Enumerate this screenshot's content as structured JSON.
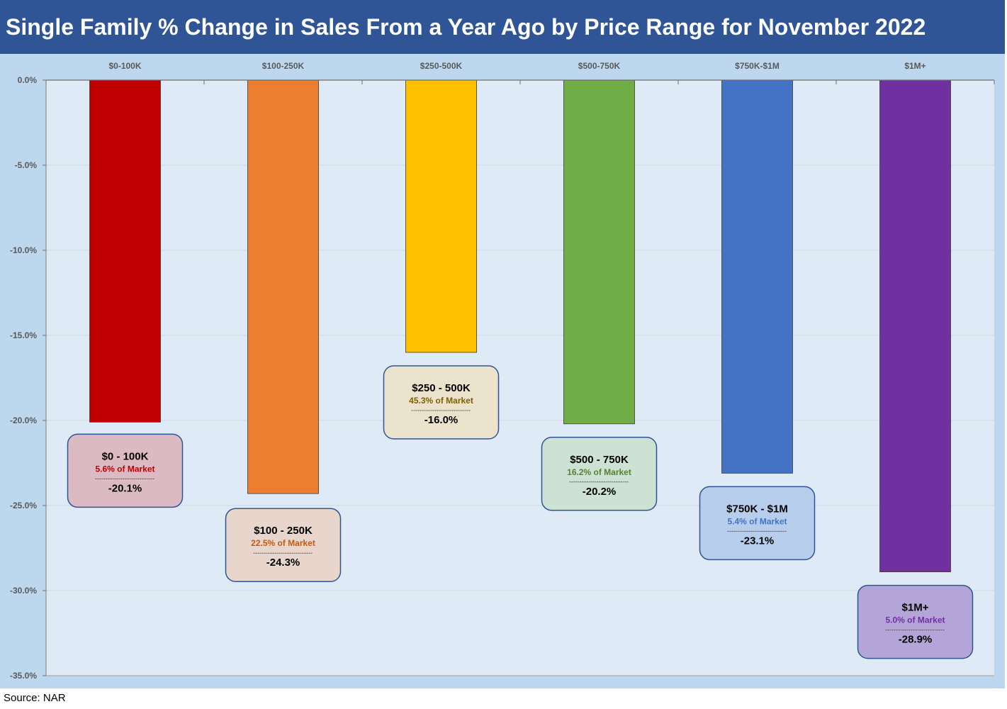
{
  "title": "Single Family % Change in Sales From a Year Ago by Price Range for November 2022",
  "source": "Source: NAR",
  "chart_data": {
    "type": "bar",
    "title": "Single Family % Change in Sales From a Year Ago by Price Range for November 2022",
    "categories": [
      "$0-100K",
      "$100-250K",
      "$250-500K",
      "$500-750K",
      "$750K-$1M",
      "$1M+"
    ],
    "values": [
      -20.1,
      -24.3,
      -16.0,
      -20.2,
      -23.1,
      -28.9
    ],
    "ylim": [
      -35,
      0
    ],
    "yticks": [
      0,
      -5,
      -10,
      -15,
      -20,
      -25,
      -30,
      -35
    ],
    "ytick_labels": [
      "0.0%",
      "-5.0%",
      "-10.0%",
      "-15.0%",
      "-20.0%",
      "-25.0%",
      "-30.0%",
      "-35.0%"
    ],
    "xaxis_position": "top",
    "grid": true,
    "colors": [
      "#c00000",
      "#ed7d31",
      "#ffc000",
      "#70ad47",
      "#4472c4",
      "#7030a0"
    ],
    "annotations": [
      {
        "heading": "$0 - 100K",
        "share": "5.6% of Market",
        "value": "-20.1%",
        "fill": "#dbbac4",
        "share_color": "#c00000"
      },
      {
        "heading": "$100 - 250K",
        "share": "22.5% of Market",
        "value": "-24.3%",
        "fill": "#e8d5cc",
        "share_color": "#c55a11"
      },
      {
        "heading": "$250 - 500K",
        "share": "45.3% of Market",
        "value": "-16.0%",
        "fill": "#ebe3cb",
        "share_color": "#7f6000"
      },
      {
        "heading": "$500 - 750K",
        "share": "16.2% of Market",
        "value": "-20.2%",
        "fill": "#cde2d3",
        "share_color": "#548235"
      },
      {
        "heading": "$750K - $1M",
        "share": "5.4% of Market",
        "value": "-23.1%",
        "fill": "#b6cdec",
        "share_color": "#4472c4"
      },
      {
        "heading": "$1M+",
        "share": "5.0% of Market",
        "value": "-28.9%",
        "fill": "#b4a5d8",
        "share_color": "#7030a0"
      }
    ]
  }
}
